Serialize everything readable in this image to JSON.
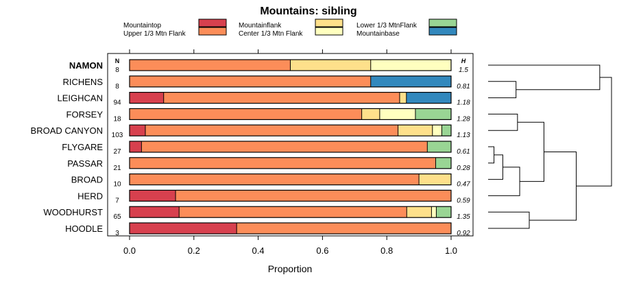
{
  "chart_data": {
    "type": "bar",
    "orientation": "horizontal",
    "stacked": true,
    "title": "Mountains: sibling",
    "xlabel": "Proportion",
    "xlim": [
      0,
      1
    ],
    "xticks": [
      "0.0",
      "0.2",
      "0.4",
      "0.6",
      "0.8",
      "1.0"
    ],
    "xtick_values": [
      0,
      0.2,
      0.4,
      0.6,
      0.8,
      1.0
    ],
    "n_header": "N",
    "h_header": "H",
    "legend": [
      {
        "name": "Mountaintop",
        "color": "#d7404e"
      },
      {
        "name": "Upper 1/3 Mtn Flank",
        "color": "#fc8d59"
      },
      {
        "name": "Mountainflank",
        "color": "#fee08b"
      },
      {
        "name": "Center 1/3 Mtn Flank",
        "color": "#ffffbf"
      },
      {
        "name": "Lower 1/3 MtnFlank",
        "color": "#99d594"
      },
      {
        "name": "Mountainbase",
        "color": "#3288bd"
      }
    ],
    "series_order": [
      "Mountaintop",
      "Upper 1/3 Mtn Flank",
      "Mountainflank",
      "Center 1/3 Mtn Flank",
      "Lower 1/3 MtnFlank",
      "Mountainbase"
    ],
    "rows": [
      {
        "label": "NAMON",
        "bold": true,
        "n": "8",
        "h": "1.5",
        "values": [
          0,
          0.5,
          0.25,
          0.25,
          0,
          0
        ]
      },
      {
        "label": "RICHENS",
        "bold": false,
        "n": "8",
        "h": "0.81",
        "values": [
          0,
          0.75,
          0,
          0,
          0,
          0.25
        ]
      },
      {
        "label": "LEIGHCAN",
        "bold": false,
        "n": "94",
        "h": "1.18",
        "values": [
          0.106,
          0.734,
          0.021,
          0,
          0,
          0.139
        ]
      },
      {
        "label": "FORSEY",
        "bold": false,
        "n": "18",
        "h": "1.28",
        "values": [
          0,
          0.722,
          0.056,
          0.111,
          0.111,
          0
        ]
      },
      {
        "label": "BROAD CANYON",
        "bold": false,
        "n": "103",
        "h": "1.13",
        "values": [
          0.049,
          0.786,
          0.107,
          0.029,
          0.029,
          0
        ]
      },
      {
        "label": "FLYGARE",
        "bold": false,
        "n": "27",
        "h": "0.61",
        "values": [
          0.037,
          0.889,
          0,
          0,
          0.074,
          0
        ]
      },
      {
        "label": "PASSAR",
        "bold": false,
        "n": "21",
        "h": "0.28",
        "values": [
          0,
          0.952,
          0,
          0,
          0.048,
          0
        ]
      },
      {
        "label": "BROAD",
        "bold": false,
        "n": "10",
        "h": "0.47",
        "values": [
          0,
          0.9,
          0.1,
          0,
          0,
          0
        ]
      },
      {
        "label": "HERD",
        "bold": false,
        "n": "7",
        "h": "0.59",
        "values": [
          0.143,
          0.857,
          0,
          0,
          0,
          0
        ]
      },
      {
        "label": "WOODHURST",
        "bold": false,
        "n": "65",
        "h": "1.35",
        "values": [
          0.154,
          0.708,
          0.077,
          0.015,
          0.046,
          0
        ]
      },
      {
        "label": "HOODLE",
        "bold": false,
        "n": "3",
        "h": "0.92",
        "values": [
          0.333,
          0.667,
          0,
          0,
          0,
          0
        ]
      }
    ],
    "dendrogram": {
      "merges": [
        {
          "a": "FLYGARE",
          "b": "PASSAR",
          "height": 0.08
        },
        {
          "a": "m1",
          "b": "BROAD",
          "height": 0.2
        },
        {
          "a": "m2",
          "b": "HERD",
          "height": 0.43
        },
        {
          "a": "LEIGHCAN",
          "b": "RICHENS",
          "height": 0.38
        },
        {
          "a": "FORSEY",
          "b": "BROAD CANYON",
          "height": 0.4
        },
        {
          "a": "m3",
          "b": "m5",
          "height": 0.76
        },
        {
          "a": "WOODHURST",
          "b": "HOODLE",
          "height": 0.56
        },
        {
          "a": "m6",
          "b": "m7",
          "height": 1.2
        },
        {
          "a": "NAMON",
          "b": "m4",
          "height": 1.52
        },
        {
          "a": "m8",
          "b": "m9",
          "height": 1.68
        }
      ]
    }
  }
}
